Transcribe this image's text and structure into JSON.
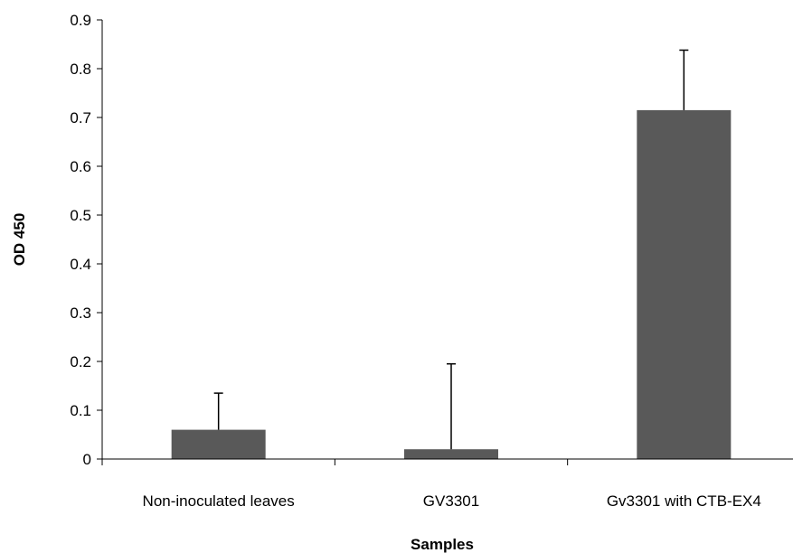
{
  "chart_data": {
    "type": "bar",
    "title": "",
    "xlabel": "Samples",
    "ylabel": "OD 450",
    "categories": [
      "Non-inoculated leaves",
      "GV3301",
      "Gv3301 with CTB-EX4"
    ],
    "values": [
      0.06,
      0.02,
      0.715
    ],
    "error_bars_upper": [
      0.075,
      0.175,
      0.123
    ],
    "ylim": [
      0,
      0.9
    ],
    "yticks": [
      "0",
      "0.1",
      "0.2",
      "0.3",
      "0.4",
      "0.5",
      "0.6",
      "0.7",
      "0.8",
      "0.9"
    ],
    "grid": false,
    "legend": "none",
    "bar_color": "#595959"
  }
}
